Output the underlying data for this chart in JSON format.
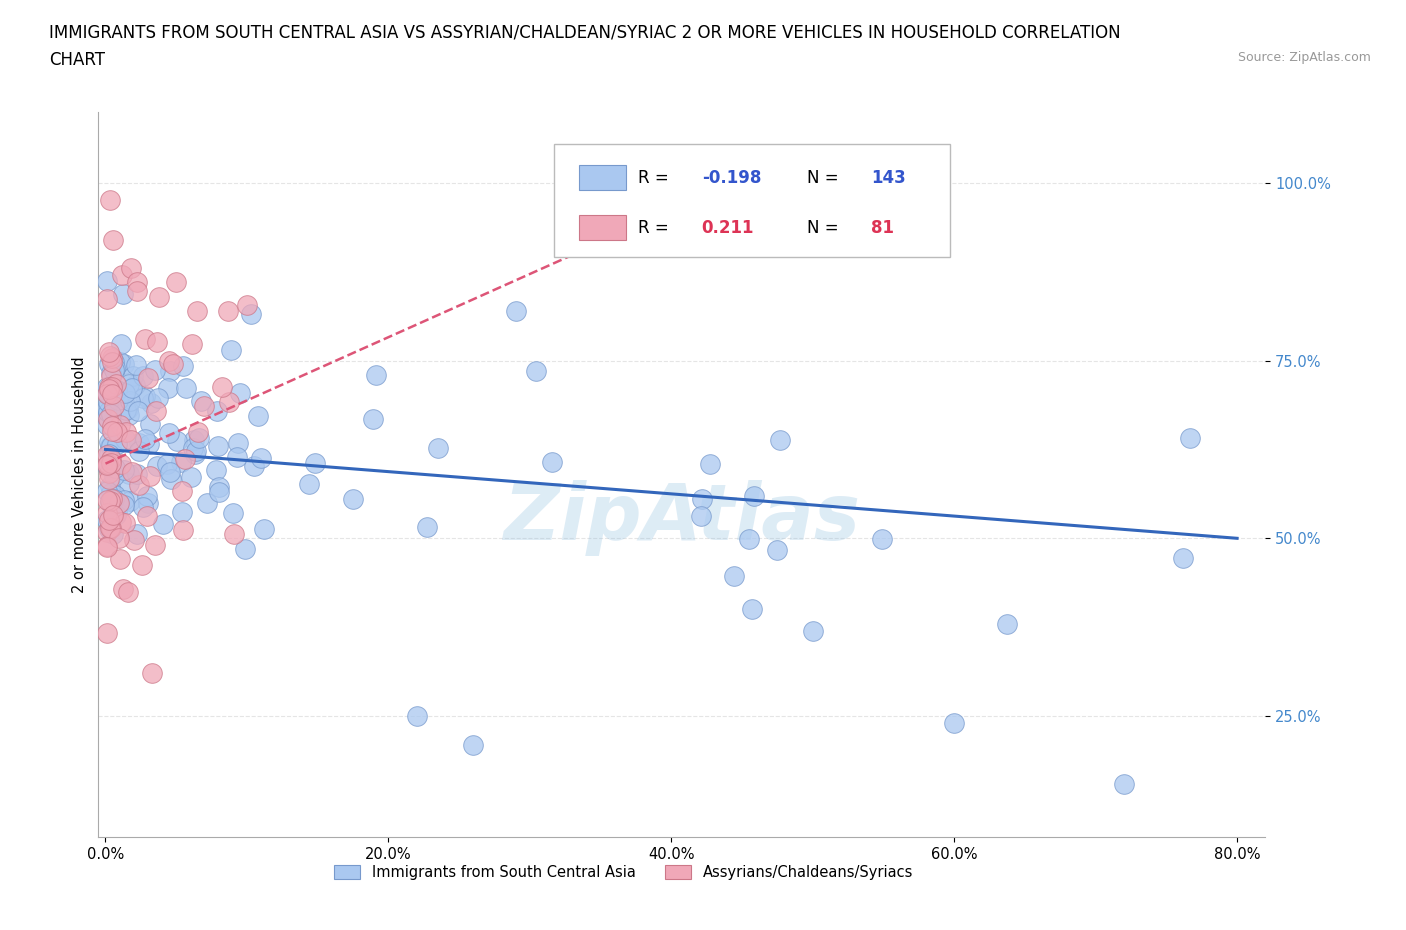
{
  "title_line1": "IMMIGRANTS FROM SOUTH CENTRAL ASIA VS ASSYRIAN/CHALDEAN/SYRIAC 2 OR MORE VEHICLES IN HOUSEHOLD CORRELATION",
  "title_line2": "CHART",
  "source_text": "Source: ZipAtlas.com",
  "ylabel": "2 or more Vehicles in Household",
  "xlim": [
    -0.005,
    0.82
  ],
  "ylim": [
    0.08,
    1.1
  ],
  "xtick_labels": [
    "0.0%",
    "20.0%",
    "40.0%",
    "60.0%",
    "80.0%"
  ],
  "xtick_values": [
    0.0,
    0.2,
    0.4,
    0.6,
    0.8
  ],
  "ytick_labels": [
    "25.0%",
    "50.0%",
    "75.0%",
    "100.0%"
  ],
  "ytick_values": [
    0.25,
    0.5,
    0.75,
    1.0
  ],
  "series1_color": "#aac8f0",
  "series1_edge_color": "#7799cc",
  "series1_label": "Immigrants from South Central Asia",
  "series1_R": "-0.198",
  "series1_N": "143",
  "series1_trend_color": "#3366bb",
  "series2_color": "#f0a8b8",
  "series2_edge_color": "#cc7788",
  "series2_label": "Assyrians/Chaldeans/Syriacs",
  "series2_R": "0.211",
  "series2_N": "81",
  "series2_trend_color": "#dd5577",
  "watermark": "ZipAtlas",
  "background_color": "#ffffff",
  "title_fontsize": 12,
  "legend_R_color1": "#3355cc",
  "legend_R_color2": "#dd3355",
  "ytick_color": "#4488cc"
}
